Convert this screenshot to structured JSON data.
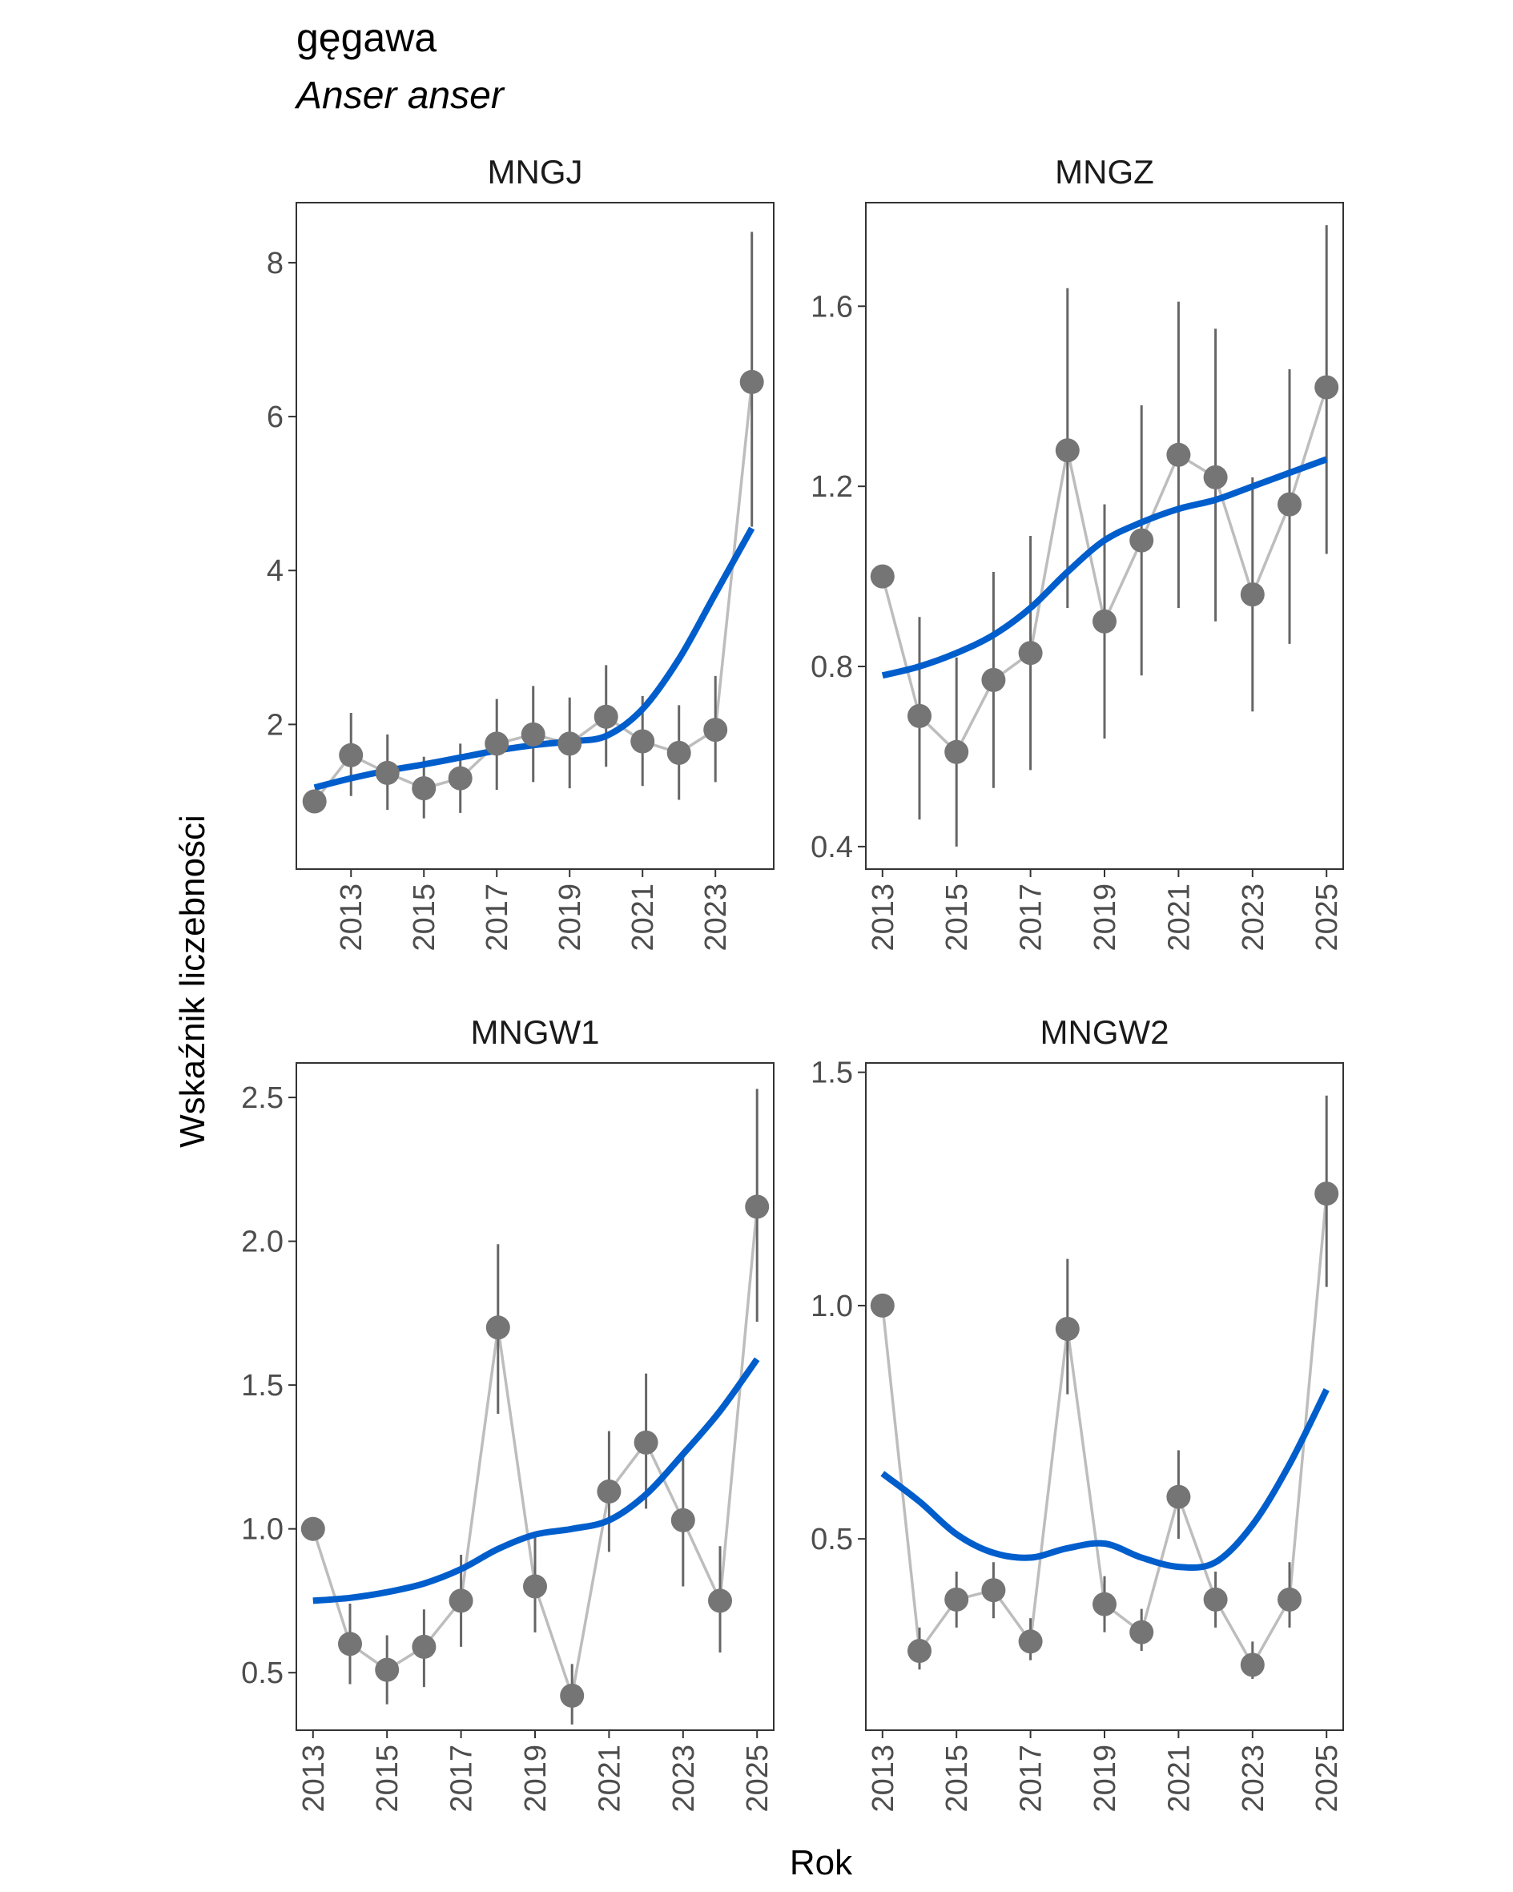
{
  "title": "gęgawa",
  "subtitle": "Anser anser",
  "xlabel": "Rok",
  "ylabel": "Wskaźnik liczebności",
  "colors": {
    "points": "#757575",
    "connector": "#bdbdbd",
    "errorbar": "#666666",
    "trend": "#005ecc",
    "frame": "#333333"
  },
  "chart_data": [
    {
      "type": "line",
      "panel": "MNGJ",
      "xlim": [
        2011.5,
        2024.6
      ],
      "ylim": [
        0.12,
        8.78
      ],
      "x_ticks": [
        2013,
        2015,
        2017,
        2019,
        2021,
        2023
      ],
      "y_ticks": [
        2,
        4,
        6,
        8
      ],
      "y_tick_labels": [
        "2",
        "4",
        "6",
        "8"
      ],
      "x": [
        2012,
        2013,
        2014,
        2015,
        2016,
        2017,
        2018,
        2019,
        2020,
        2021,
        2022,
        2023,
        2024
      ],
      "index": [
        1.0,
        1.6,
        1.37,
        1.17,
        1.3,
        1.75,
        1.87,
        1.75,
        2.1,
        1.78,
        1.63,
        1.93,
        6.45
      ],
      "lower": [
        null,
        1.07,
        0.89,
        0.78,
        0.85,
        1.15,
        1.25,
        1.17,
        1.45,
        1.2,
        1.02,
        1.25,
        4.57
      ],
      "upper": [
        null,
        2.15,
        1.87,
        1.58,
        1.75,
        2.33,
        2.5,
        2.35,
        2.77,
        2.37,
        2.25,
        2.63,
        8.4
      ],
      "trend": [
        1.18,
        1.3,
        1.4,
        1.48,
        1.57,
        1.66,
        1.73,
        1.78,
        1.85,
        2.2,
        2.85,
        3.7,
        4.55
      ]
    },
    {
      "type": "line",
      "panel": "MNGZ",
      "xlim": [
        2012.55,
        2025.45
      ],
      "ylim": [
        0.35,
        1.83
      ],
      "x_ticks": [
        2013,
        2015,
        2017,
        2019,
        2021,
        2023,
        2025
      ],
      "y_ticks": [
        0.4,
        0.8,
        1.2,
        1.6
      ],
      "y_tick_labels": [
        "0.4",
        "0.8",
        "1.2",
        "1.6"
      ],
      "x": [
        2013,
        2014,
        2015,
        2016,
        2017,
        2018,
        2019,
        2020,
        2021,
        2022,
        2023,
        2024,
        2025
      ],
      "index": [
        1.0,
        0.69,
        0.61,
        0.77,
        0.83,
        1.28,
        0.9,
        1.08,
        1.27,
        1.22,
        0.96,
        1.16,
        1.42
      ],
      "lower": [
        null,
        0.46,
        0.4,
        0.53,
        0.57,
        0.93,
        0.64,
        0.78,
        0.93,
        0.9,
        0.7,
        0.85,
        1.05
      ],
      "upper": [
        null,
        0.91,
        0.82,
        1.01,
        1.09,
        1.64,
        1.16,
        1.38,
        1.61,
        1.55,
        1.22,
        1.46,
        1.78
      ],
      "trend": [
        0.78,
        0.8,
        0.83,
        0.87,
        0.93,
        1.01,
        1.08,
        1.12,
        1.15,
        1.17,
        1.2,
        1.23,
        1.26
      ]
    },
    {
      "type": "line",
      "panel": "MNGW1",
      "xlim": [
        2012.55,
        2025.45
      ],
      "ylim": [
        0.3,
        2.62
      ],
      "x_ticks": [
        2013,
        2015,
        2017,
        2019,
        2021,
        2023,
        2025
      ],
      "y_ticks": [
        0.5,
        1.0,
        1.5,
        2.0,
        2.5
      ],
      "y_tick_labels": [
        "0.5",
        "1.0",
        "1.5",
        "2.0",
        "2.5"
      ],
      "x": [
        2013,
        2014,
        2015,
        2016,
        2017,
        2018,
        2019,
        2020,
        2021,
        2022,
        2023,
        2024,
        2025
      ],
      "index": [
        1.0,
        0.6,
        0.51,
        0.59,
        0.75,
        1.7,
        0.8,
        0.42,
        1.13,
        1.3,
        1.03,
        0.75,
        2.12
      ],
      "lower": [
        null,
        0.46,
        0.39,
        0.45,
        0.59,
        1.4,
        0.64,
        0.32,
        0.92,
        1.07,
        0.8,
        0.57,
        1.72
      ],
      "upper": [
        null,
        0.74,
        0.63,
        0.72,
        0.91,
        1.99,
        0.97,
        0.53,
        1.34,
        1.54,
        1.27,
        0.94,
        2.53
      ],
      "trend": [
        0.75,
        0.76,
        0.78,
        0.81,
        0.86,
        0.93,
        0.98,
        1.0,
        1.03,
        1.12,
        1.26,
        1.41,
        1.59
      ]
    },
    {
      "type": "line",
      "panel": "MNGW2",
      "xlim": [
        2012.55,
        2025.45
      ],
      "ylim": [
        0.09,
        1.52
      ],
      "x_ticks": [
        2013,
        2015,
        2017,
        2019,
        2021,
        2023,
        2025
      ],
      "y_ticks": [
        0.5,
        1.0,
        1.5
      ],
      "y_tick_labels": [
        "0.5",
        "1.0",
        "1.5"
      ],
      "x": [
        2013,
        2014,
        2015,
        2016,
        2017,
        2018,
        2019,
        2020,
        2021,
        2022,
        2023,
        2024,
        2025
      ],
      "index": [
        1.0,
        0.26,
        0.37,
        0.39,
        0.28,
        0.95,
        0.36,
        0.3,
        0.59,
        0.37,
        0.23,
        0.37,
        1.24
      ],
      "lower": [
        null,
        0.22,
        0.31,
        0.33,
        0.24,
        0.81,
        0.3,
        0.26,
        0.5,
        0.31,
        0.2,
        0.31,
        1.04
      ],
      "upper": [
        null,
        0.31,
        0.43,
        0.45,
        0.33,
        1.1,
        0.42,
        0.35,
        0.69,
        0.43,
        0.28,
        0.45,
        1.45
      ],
      "trend": [
        0.64,
        0.58,
        0.51,
        0.47,
        0.46,
        0.48,
        0.49,
        0.46,
        0.44,
        0.45,
        0.53,
        0.66,
        0.82
      ]
    }
  ]
}
